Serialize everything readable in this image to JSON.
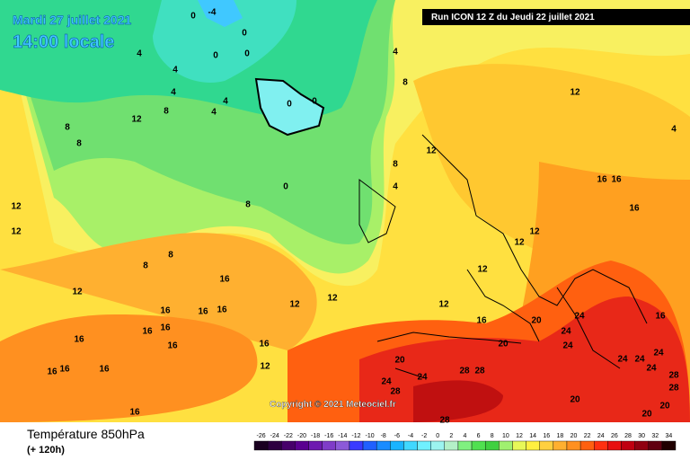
{
  "header": {
    "date": "Mardi 27 juillet 2021",
    "time": "14:00 locale",
    "run": "Run ICON 12 Z du Jeudi 22 juillet 2021",
    "copyright": "Copyright © 2021 Meteociel.fr"
  },
  "legend": {
    "title": "Température 850hPa",
    "subtitle": "(+ 120h)",
    "ticks": [
      -26,
      -24,
      -22,
      -20,
      -18,
      -16,
      -14,
      -12,
      -10,
      -8,
      -6,
      -4,
      -2,
      0,
      2,
      4,
      6,
      8,
      10,
      12,
      14,
      16,
      18,
      20,
      22,
      24,
      26,
      28,
      30,
      32,
      34
    ],
    "colors": [
      "#1a0020",
      "#2d0040",
      "#46006a",
      "#5a0090",
      "#6e1ab0",
      "#7f3cc8",
      "#8c5ad8",
      "#3a3aff",
      "#2060ff",
      "#1a8cff",
      "#1ab4ff",
      "#40d8ff",
      "#70f0ff",
      "#9cf4f0",
      "#b4f0c8",
      "#80f080",
      "#50e050",
      "#40d040",
      "#a0f070",
      "#e8f858",
      "#fff040",
      "#ffd040",
      "#ffb030",
      "#ff9020",
      "#ff6010",
      "#ff3010",
      "#e81010",
      "#c00010",
      "#900010",
      "#600010",
      "#200000"
    ]
  },
  "contours": [
    "-4",
    "0",
    "0",
    "0",
    "0",
    "4",
    "4",
    "4",
    "4",
    "4",
    "0",
    "0",
    "4",
    "8",
    "12",
    "8",
    "8",
    "8",
    "12",
    "8",
    "4",
    "0",
    "8",
    "12",
    "12",
    "8",
    "8",
    "12",
    "16",
    "12",
    "12",
    "12",
    "12",
    "12",
    "12",
    "12",
    "16",
    "16",
    "16",
    "16",
    "16",
    "16",
    "16",
    "16",
    "16",
    "16",
    "16",
    "16",
    "12",
    "16",
    "16",
    "16",
    "16",
    "16",
    "20",
    "20",
    "24",
    "24",
    "24",
    "20",
    "28",
    "28",
    "24",
    "28",
    "24",
    "24",
    "24",
    "24",
    "24",
    "28",
    "28",
    "20",
    "20",
    "20",
    "28",
    "4"
  ]
}
